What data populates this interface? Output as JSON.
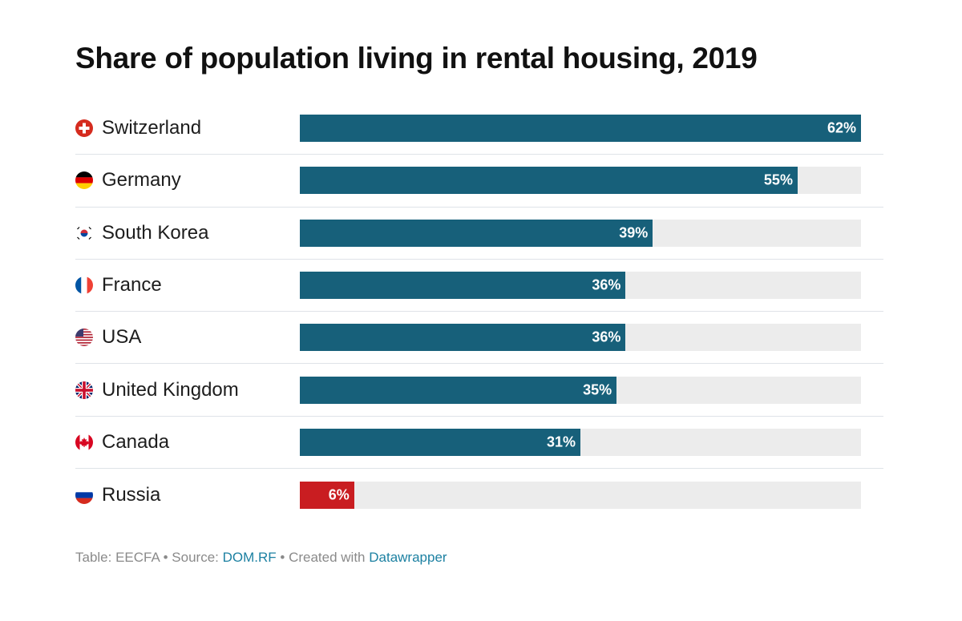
{
  "chart_data": {
    "type": "bar",
    "title": "Share of population living in rental housing, 2019",
    "categories": [
      "Switzerland",
      "Germany",
      "South Korea",
      "France",
      "USA",
      "United Kingdom",
      "Canada",
      "Russia"
    ],
    "values": [
      62,
      55,
      39,
      36,
      36,
      35,
      31,
      6
    ],
    "value_labels": [
      "62%",
      "55%",
      "39%",
      "36%",
      "36%",
      "35%",
      "31%",
      "6%"
    ],
    "xlim": [
      0,
      62
    ],
    "highlight": "Russia",
    "colors": {
      "bar": "#17607a",
      "highlight": "#c91d21",
      "track": "#ececec"
    },
    "flags": [
      "switzerland-flag-icon",
      "germany-flag-icon",
      "south-korea-flag-icon",
      "france-flag-icon",
      "usa-flag-icon",
      "united-kingdom-flag-icon",
      "canada-flag-icon",
      "russia-flag-icon"
    ]
  },
  "footer": {
    "table_label": "Table: EECFA",
    "separator": " • ",
    "source_prefix": "Source: ",
    "source_link": "DOM.RF",
    "created_prefix": "Created with ",
    "created_link": "Datawrapper"
  }
}
